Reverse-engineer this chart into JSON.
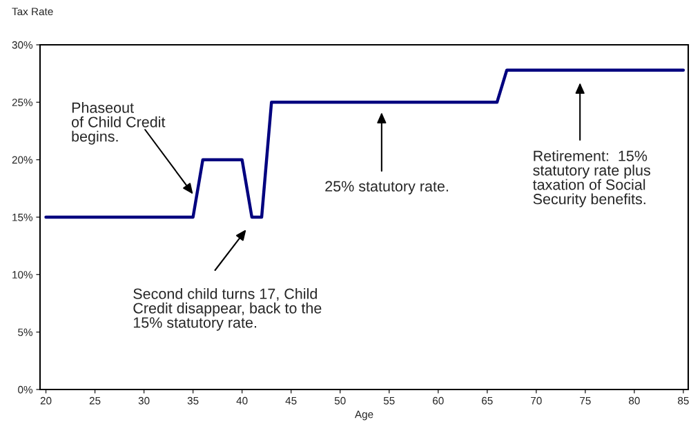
{
  "chart_data": {
    "type": "line",
    "xlabel": "Age",
    "ylabel": "Tax Rate",
    "x": [
      20,
      35,
      36,
      40,
      41,
      42,
      43,
      66,
      67,
      85
    ],
    "series": [
      {
        "color": "#00007f",
        "values": [
          15,
          15,
          20,
          20,
          15,
          15,
          25,
          25,
          27.8,
          27.8
        ]
      }
    ],
    "xlim": [
      19.4,
      85.5
    ],
    "xticks": [
      20,
      25,
      30,
      35,
      40,
      45,
      50,
      55,
      60,
      65,
      70,
      75,
      80,
      85
    ],
    "ylim": [
      0,
      30
    ],
    "yticks": [
      {
        "value": 0,
        "label": "0%"
      },
      {
        "value": 5,
        "label": "5%"
      },
      {
        "value": 10,
        "label": "10%"
      },
      {
        "value": 15,
        "label": "15%"
      },
      {
        "value": 20,
        "label": "20%"
      },
      {
        "value": 25,
        "label": "25%"
      },
      {
        "value": 30,
        "label": "30%"
      }
    ],
    "grid": false,
    "legend": false,
    "marker": "none",
    "line_style": "solid",
    "annotations": [
      {
        "text": "Phaseout\nof Child Credit\nbegins.",
        "x": 35,
        "y": 17
      },
      "Second child turns 17, Child\nCredit disappear, back to the\n15% statutory rate.",
      "25% statutory rate.",
      "Retirement:  15%\nstatutory rate plus\ntaxation of Social\nSecurity benefits."
    ]
  }
}
